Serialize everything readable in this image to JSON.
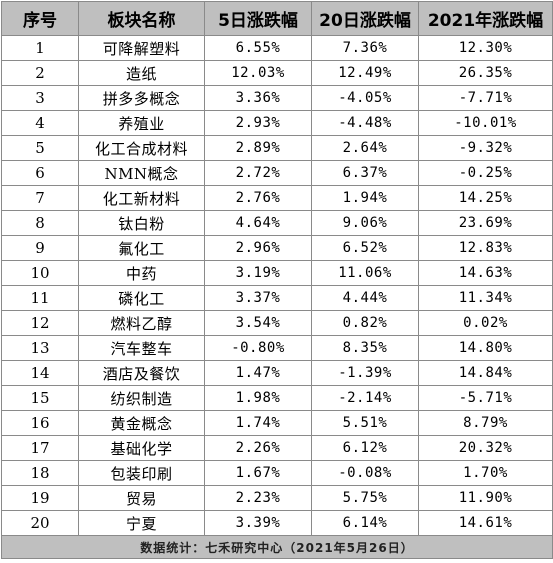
{
  "table": {
    "headers": [
      "序号",
      "板块名称",
      "5日涨跌幅",
      "20日涨跌幅",
      "2021年涨跌幅"
    ],
    "rows": [
      [
        "1",
        "可降解塑料",
        "6.55%",
        "7.36%",
        "12.30%"
      ],
      [
        "2",
        "造纸",
        "12.03%",
        "12.49%",
        "26.35%"
      ],
      [
        "3",
        "拼多多概念",
        "3.36%",
        "-4.05%",
        "-7.71%"
      ],
      [
        "4",
        "养殖业",
        "2.93%",
        "-4.48%",
        "-10.01%"
      ],
      [
        "5",
        "化工合成材料",
        "2.89%",
        "2.64%",
        "-9.32%"
      ],
      [
        "6",
        "NMN概念",
        "2.72%",
        "6.37%",
        "-0.25%"
      ],
      [
        "7",
        "化工新材料",
        "2.76%",
        "1.94%",
        "14.25%"
      ],
      [
        "8",
        "钛白粉",
        "4.64%",
        "9.06%",
        "23.69%"
      ],
      [
        "9",
        "氟化工",
        "2.96%",
        "6.52%",
        "12.83%"
      ],
      [
        "10",
        "中药",
        "3.19%",
        "11.06%",
        "14.63%"
      ],
      [
        "11",
        "磷化工",
        "3.37%",
        "4.44%",
        "11.34%"
      ],
      [
        "12",
        "燃料乙醇",
        "3.54%",
        "0.82%",
        "0.02%"
      ],
      [
        "13",
        "汽车整车",
        "-0.80%",
        "8.35%",
        "14.80%"
      ],
      [
        "14",
        "酒店及餐饮",
        "1.47%",
        "-1.39%",
        "14.84%"
      ],
      [
        "15",
        "纺织制造",
        "1.98%",
        "-2.14%",
        "-5.71%"
      ],
      [
        "16",
        "黄金概念",
        "1.74%",
        "5.51%",
        "8.79%"
      ],
      [
        "17",
        "基础化学",
        "2.26%",
        "6.12%",
        "20.32%"
      ],
      [
        "18",
        "包装印刷",
        "1.67%",
        "-0.08%",
        "1.70%"
      ],
      [
        "19",
        "贸易",
        "2.23%",
        "5.75%",
        "11.90%"
      ],
      [
        "20",
        "宁夏",
        "3.39%",
        "6.14%",
        "14.61%"
      ]
    ]
  },
  "footer": {
    "text": "数据统计：七禾研究中心（2021年5月26日）"
  }
}
